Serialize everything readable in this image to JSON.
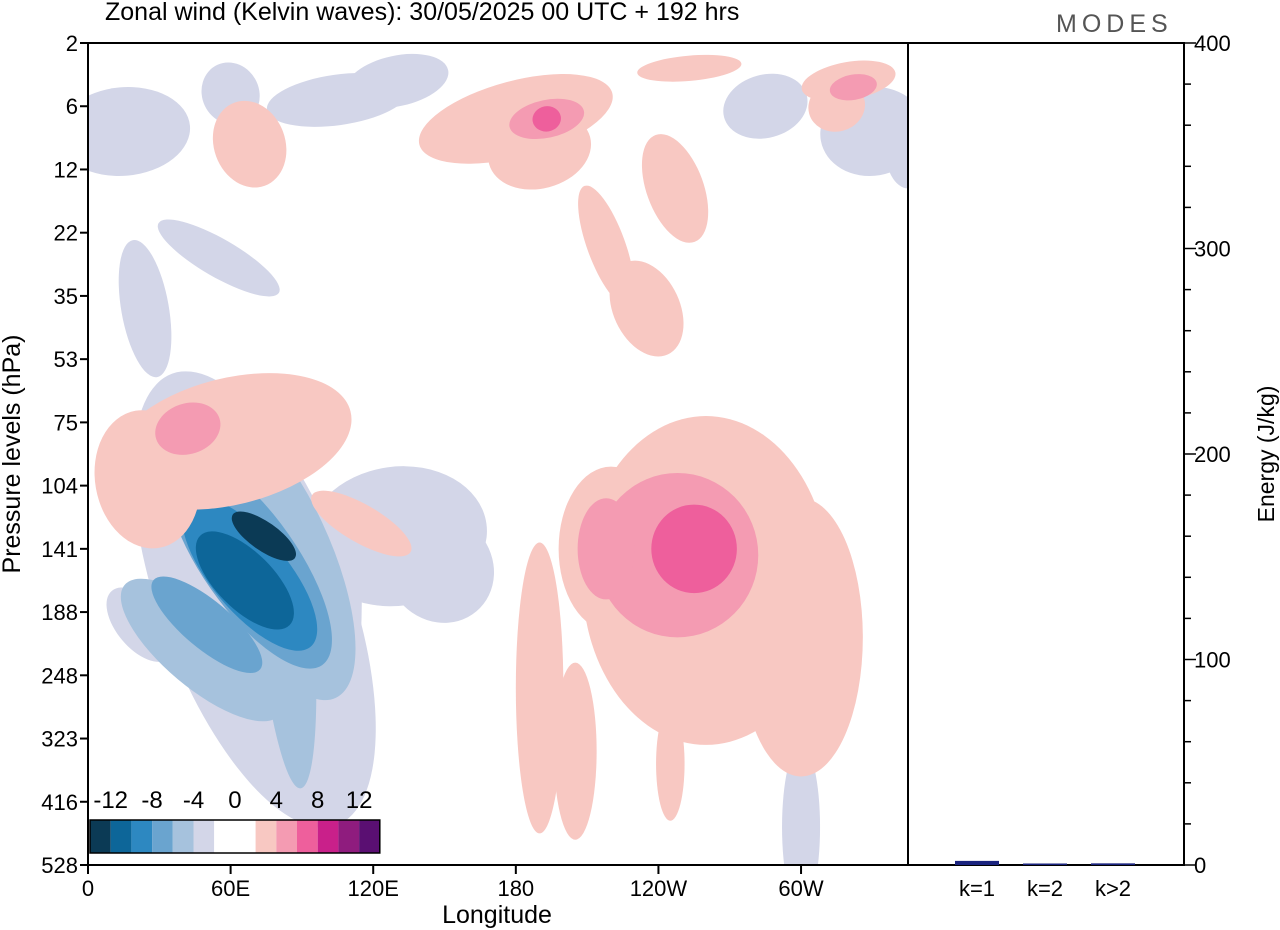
{
  "title": "Zonal wind (Kelvin waves):  30/05/2025  00 UTC  + 192 hrs",
  "logo": "MODES",
  "colors": {
    "neg": [
      "#0b3a55",
      "#0d6699",
      "#2d88c1",
      "#6aa4cf",
      "#a6c2dd",
      "#d3d6e8"
    ],
    "pos": [
      "#f8c8c2",
      "#f49bb2",
      "#ee5f9c",
      "#c9208a",
      "#8f1c7e",
      "#5a0f72"
    ],
    "energy_bar": "#1a237e"
  },
  "chart_data": [
    {
      "type": "heatmap",
      "title": "Zonal wind (Kelvin waves):  30/05/2025  00 UTC  + 192 hrs",
      "xlabel": "Longitude",
      "ylabel": "Pressure levels (hPa)",
      "x_ticks": [
        "0",
        "60E",
        "120E",
        "180",
        "120W",
        "60W"
      ],
      "x_tick_values": [
        0,
        60,
        120,
        180,
        240,
        300
      ],
      "xlim": [
        0,
        345
      ],
      "y_ticks": [
        "2",
        "6",
        "12",
        "22",
        "35",
        "53",
        "75",
        "104",
        "141",
        "188",
        "248",
        "323",
        "416",
        "528"
      ],
      "y_axis": "pressure levels (hPa), top = 2, bottom = 528",
      "colorbar": {
        "labels": [
          "-12",
          "-8",
          "-4",
          "0",
          "4",
          "8",
          "12"
        ],
        "levels": [
          -14,
          -12,
          -10,
          -8,
          -6,
          -4,
          -2,
          2,
          4,
          6,
          8,
          10,
          12,
          14
        ]
      },
      "features": [
        {
          "name": "negative core",
          "lon": 72,
          "pressure_hPa": 120,
          "min_wind": -13
        },
        {
          "name": "positive core",
          "lon": 265,
          "pressure_hPa": 125,
          "max_wind": 7
        },
        {
          "name": "positive secondary",
          "lon": 215,
          "pressure_hPa": 130,
          "max_wind": 5
        },
        {
          "name": "stratospheric positive",
          "lon": 195,
          "pressure_hPa": 6,
          "max_wind": 6
        }
      ]
    },
    {
      "type": "bar",
      "ylabel": "Energy (J/kg)",
      "categories": [
        "k=1",
        "k=2",
        "k>2"
      ],
      "values": [
        2,
        0.5,
        0.8
      ],
      "ylim": [
        0,
        400
      ],
      "y_ticks": [
        "0",
        "100",
        "200",
        "300",
        "400"
      ]
    }
  ]
}
